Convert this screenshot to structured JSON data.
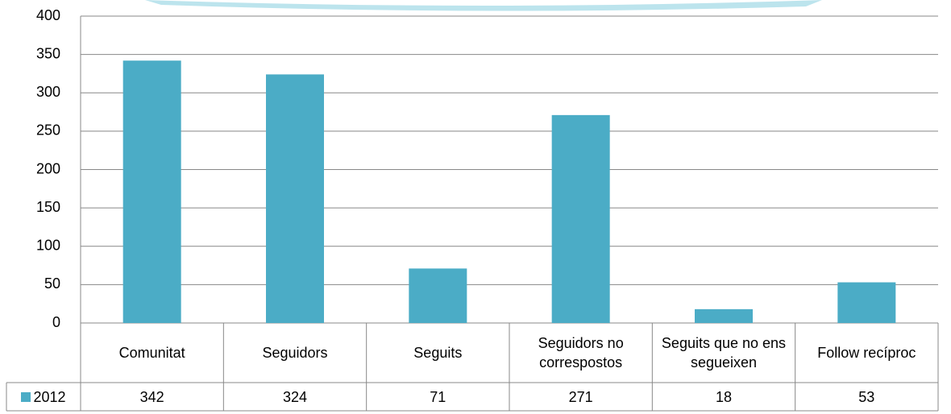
{
  "chart_data": {
    "type": "bar",
    "categories": [
      "Comunitat",
      "Seguidors",
      "Seguits",
      "Seguidors no correspostos",
      "Seguits que no ens segueixen",
      "Follow recíproc"
    ],
    "series": [
      {
        "name": "2012",
        "color": "#4bacc6",
        "values": [
          342,
          324,
          71,
          271,
          18,
          53
        ]
      }
    ],
    "ylim": [
      0,
      400
    ],
    "yticks": [
      0,
      50,
      100,
      150,
      200,
      250,
      300,
      350,
      400
    ],
    "grid": true
  }
}
